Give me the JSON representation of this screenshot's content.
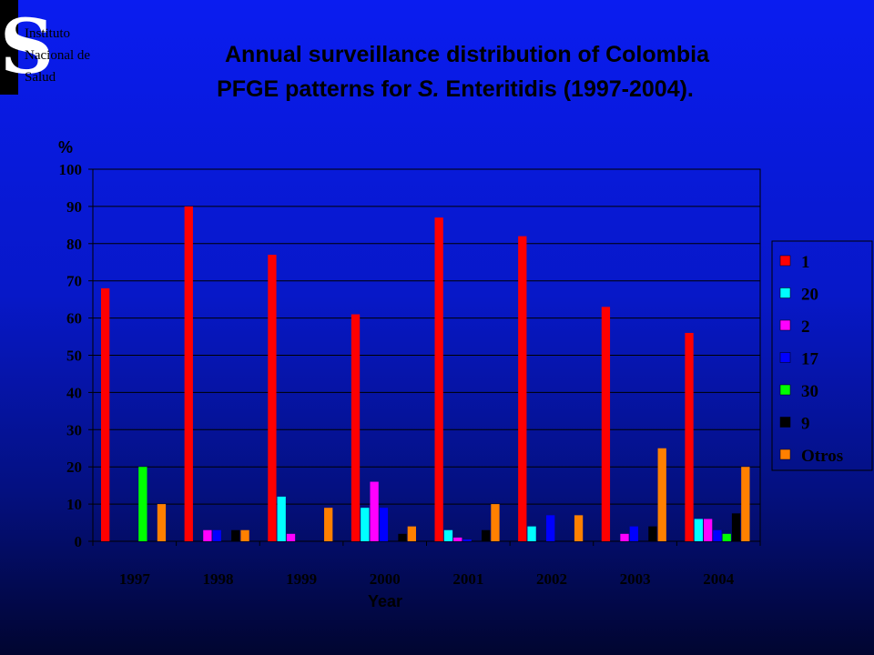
{
  "logo": {
    "lines": [
      "Instituto",
      "Nacional de",
      "Salud"
    ]
  },
  "title": {
    "line1": "Annual surveillance distribution of Colombia",
    "line2_prefix": "PFGE patterns for ",
    "line2_italic": "S.",
    "line2_suffix": " Enteritidis (1997-2004)."
  },
  "colors": {
    "background_top": "#0a1cf0",
    "background_bottom": "#010530",
    "grid": "#000000"
  },
  "chart_data": {
    "type": "bar",
    "title": "Annual surveillance distribution of Colombia PFGE patterns for S. Enteritidis (1997-2004).",
    "ylabel": "%",
    "xlabel": "Year",
    "ylim": [
      0,
      100
    ],
    "yticks": [
      0,
      10,
      20,
      30,
      40,
      50,
      60,
      70,
      80,
      90,
      100
    ],
    "grid": true,
    "legend_position": "right",
    "categories": [
      "1997",
      "1998",
      "1999",
      "2000",
      "2001",
      "2002",
      "2003",
      "2004"
    ],
    "series": [
      {
        "name": "1",
        "color": "#ff0000",
        "values": [
          68,
          90,
          77,
          61,
          87,
          82,
          63,
          56
        ]
      },
      {
        "name": "20",
        "color": "#00ffff",
        "values": [
          0,
          0,
          12,
          9,
          3,
          4,
          0,
          6
        ]
      },
      {
        "name": "2",
        "color": "#ff00ff",
        "values": [
          0,
          3,
          2,
          16,
          1,
          0,
          2,
          6
        ]
      },
      {
        "name": "17",
        "color": "#0000ff",
        "values": [
          0,
          3,
          0,
          9,
          0.5,
          7,
          4,
          3
        ]
      },
      {
        "name": "30",
        "color": "#00ff00",
        "values": [
          20,
          0,
          0,
          0,
          0,
          0,
          0,
          2
        ]
      },
      {
        "name": "9",
        "color": "#000000",
        "values": [
          0,
          3,
          0,
          2,
          3,
          0,
          4,
          7.5
        ]
      },
      {
        "name": "Otros",
        "color": "#ff8000",
        "values": [
          10,
          3,
          9,
          4,
          10,
          7,
          25,
          20
        ]
      }
    ]
  }
}
